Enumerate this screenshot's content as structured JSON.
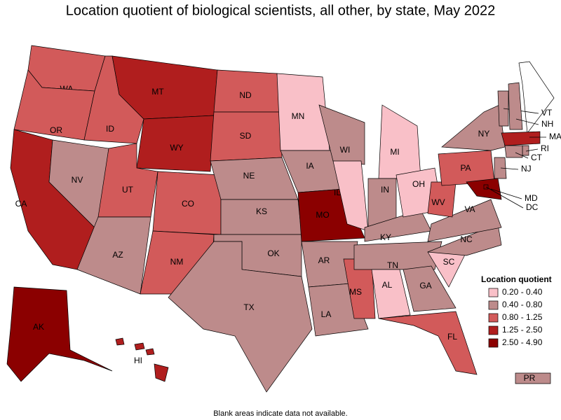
{
  "title": "Location quotient of biological scientists, all other, by state, May 2022",
  "footnote": "Blank areas indicate data not available.",
  "legend": {
    "title": "Location quotient",
    "bins": [
      {
        "label": "0.20 - 0.40",
        "color": "#f9c0c8"
      },
      {
        "label": "0.40 - 0.80",
        "color": "#bd8b8b"
      },
      {
        "label": "0.80 - 1.25",
        "color": "#d25a5a"
      },
      {
        "label": "1.25 - 2.50",
        "color": "#b01e1e"
      },
      {
        "label": "2.50 - 4.90",
        "color": "#8b0000"
      }
    ]
  },
  "states": [
    {
      "label": "WA",
      "bin": 2
    },
    {
      "label": "OR",
      "bin": 2
    },
    {
      "label": "CA",
      "bin": 3
    },
    {
      "label": "ID",
      "bin": 2
    },
    {
      "label": "NV",
      "bin": 1
    },
    {
      "label": "MT",
      "bin": 3
    },
    {
      "label": "WY",
      "bin": 3
    },
    {
      "label": "UT",
      "bin": 2
    },
    {
      "label": "AZ",
      "bin": 1
    },
    {
      "label": "CO",
      "bin": 2
    },
    {
      "label": "NM",
      "bin": 2
    },
    {
      "label": "ND",
      "bin": 2
    },
    {
      "label": "SD",
      "bin": 2
    },
    {
      "label": "NE",
      "bin": 1
    },
    {
      "label": "KS",
      "bin": 1
    },
    {
      "label": "OK",
      "bin": 1
    },
    {
      "label": "TX",
      "bin": 1
    },
    {
      "label": "MN",
      "bin": 0
    },
    {
      "label": "IA",
      "bin": 1
    },
    {
      "label": "MO",
      "bin": 4
    },
    {
      "label": "AR",
      "bin": 1
    },
    {
      "label": "LA",
      "bin": 1
    },
    {
      "label": "WI",
      "bin": 1
    },
    {
      "label": "IL",
      "bin": 0
    },
    {
      "label": "MS",
      "bin": 2
    },
    {
      "label": "MI",
      "bin": 0
    },
    {
      "label": "IN",
      "bin": 1
    },
    {
      "label": "KY",
      "bin": 1
    },
    {
      "label": "TN",
      "bin": 1
    },
    {
      "label": "AL",
      "bin": 0
    },
    {
      "label": "OH",
      "bin": 0
    },
    {
      "label": "GA",
      "bin": 1
    },
    {
      "label": "FL",
      "bin": 2
    },
    {
      "label": "SC",
      "bin": 0
    },
    {
      "label": "NC",
      "bin": 1
    },
    {
      "label": "VA",
      "bin": 1
    },
    {
      "label": "WV",
      "bin": 2
    },
    {
      "label": "PA",
      "bin": 2
    },
    {
      "label": "NY",
      "bin": 1
    },
    {
      "label": "VT",
      "bin": 1
    },
    {
      "label": "NH",
      "bin": 1
    },
    {
      "label": "MA",
      "bin": 3
    },
    {
      "label": "RI",
      "bin": 1
    },
    {
      "label": "CT",
      "bin": 1
    },
    {
      "label": "NJ",
      "bin": 1
    },
    {
      "label": "MD",
      "bin": 4
    },
    {
      "label": "DC",
      "bin": 4
    },
    {
      "label": "AK",
      "bin": 4
    },
    {
      "label": "HI",
      "bin": 3
    },
    {
      "label": "PR",
      "bin": 1
    }
  ]
}
